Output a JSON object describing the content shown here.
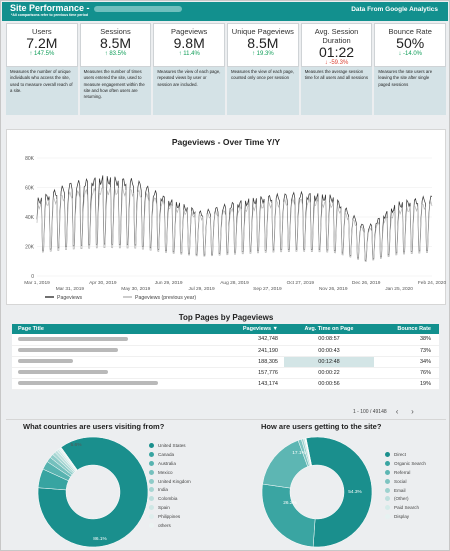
{
  "header": {
    "title": "Site Performance -",
    "subtitle": "*All comparisons refer to previous time period",
    "right_label": "Data From Google Analytics"
  },
  "kpis": [
    {
      "label": "Users",
      "value": "7.2M",
      "change": "↑ 147.5%",
      "dir": "up",
      "desc": "Measures the number of unique individuals who access the site, used to measure overall reach of a site."
    },
    {
      "label": "Sessions",
      "value": "8.5M",
      "change": "↑ 83.5%",
      "dir": "up",
      "desc": "Measures the number of times users entered the site, used to measure engagement within the site and how often users are returning."
    },
    {
      "label": "Pageviews",
      "value": "9.8M",
      "change": "↑ 11.4%",
      "dir": "up",
      "desc": "Measures the view of each page, repeated views by user or session are included."
    },
    {
      "label": "Unique Pageviews",
      "value": "8.5M",
      "change": "↑ 19.3%",
      "dir": "up",
      "desc": "Measures the view of each page, counted only once per session"
    },
    {
      "label": "Avg. Session Duration",
      "value": "01:22",
      "change": "↓ -59.3%",
      "dir": "down",
      "desc": "Measures the average session time for all users and all sessions"
    },
    {
      "label": "Bounce Rate",
      "value": "50%",
      "change": "↓ -14.0%",
      "dir": "up",
      "desc": "Measures the rate users are leaving the site after single paged sessions"
    }
  ],
  "line_chart": {
    "title": "Pageviews - Over Time Y/Y",
    "y_ticks": [
      "80K",
      "60K",
      "40K",
      "20K",
      "0"
    ],
    "x_ticks_top": [
      "Mar 1, 2019",
      "Apr 30, 2019",
      "Jun 29, 2019",
      "Aug 28, 2019",
      "Oct 27, 2019",
      "Dec 26, 2019",
      "Feb 24, 2020"
    ],
    "x_ticks_bottom": [
      "Mar 31, 2019",
      "May 30, 2019",
      "Jul 29, 2019",
      "Sep 27, 2019",
      "Nov 26, 2019",
      "Jan 25, 2020"
    ],
    "legend": [
      "Pageviews",
      "Pageviews (previous year)"
    ]
  },
  "chart_data": {
    "type": "line",
    "title": "Pageviews - Over Time Y/Y",
    "x": [
      "Mar 1, 2019",
      "Mar 31, 2019",
      "Apr 30, 2019",
      "May 30, 2019",
      "Jun 29, 2019",
      "Jul 29, 2019",
      "Aug 28, 2019",
      "Sep 27, 2019",
      "Oct 27, 2019",
      "Nov 26, 2019",
      "Dec 26, 2019",
      "Jan 25, 2020",
      "Feb 24, 2020"
    ],
    "ylim": [
      0,
      80000
    ],
    "series": [
      {
        "name": "Pageviews",
        "values": [
          48000,
          58000,
          62000,
          60000,
          48000,
          40000,
          46000,
          50000,
          52000,
          50000,
          30000,
          46000,
          50000
        ]
      },
      {
        "name": "Pageviews (previous year)",
        "values": [
          45000,
          52000,
          55000,
          54000,
          45000,
          38000,
          42000,
          46000,
          48000,
          46000,
          28000,
          42000,
          46000
        ]
      }
    ]
  },
  "table": {
    "title": "Top Pages by Pageviews",
    "headers": [
      "Page Title",
      "Pageviews ▼",
      "Avg. Time on Page",
      "Bounce Rate"
    ],
    "rows": [
      {
        "pageviews": "342,748",
        "time": "00:08:57",
        "bounce": "38%"
      },
      {
        "pageviews": "241,190",
        "time": "00:00:43",
        "bounce": "73%"
      },
      {
        "pageviews": "188,305",
        "time": "00:12:48",
        "bounce": "34%"
      },
      {
        "pageviews": "157,776",
        "time": "00:00:22",
        "bounce": "76%"
      },
      {
        "pageviews": "143,174",
        "time": "00:00:56",
        "bounce": "19%"
      }
    ],
    "pagination": "1 - 100 / 49148"
  },
  "countries": {
    "title": "What countries are users visiting from?",
    "labels": [
      "United States",
      "Canada",
      "Australia",
      "Mexico",
      "United Kingdom",
      "India",
      "Colombia",
      "Spain",
      "Philippines",
      "others"
    ],
    "colors": [
      "#1a8f8d",
      "#37a4a1",
      "#57b3b0",
      "#74c0bd",
      "#8ecbc8",
      "#a7d6d3",
      "#bddfdd",
      "#cfe7e5",
      "#dfeeed",
      "#ebf3f2"
    ],
    "values": [
      86.1,
      5.6,
      2.5,
      1.5,
      1.1,
      0.9,
      0.8,
      0.6,
      0.5,
      0.4
    ],
    "label_big": "86.1%",
    "label_small": "5.6%"
  },
  "channels": {
    "title": "How are users getting to the site?",
    "labels": [
      "Direct",
      "Organic Search",
      "Referral",
      "Social",
      "Email",
      "(Other)",
      "Paid Search",
      "Display"
    ],
    "colors": [
      "#1a8f8d",
      "#3aa5a2",
      "#5db6b3",
      "#7ec4c1",
      "#9dd2cf",
      "#bcdfdd",
      "#d4ebe9",
      "#e6f2f1"
    ],
    "values": [
      54.3,
      26.2,
      17.1,
      1.0,
      0.6,
      0.4,
      0.2,
      0.2
    ],
    "label_a": "54.3%",
    "label_b": "26.2%",
    "label_c": "17.1%"
  }
}
